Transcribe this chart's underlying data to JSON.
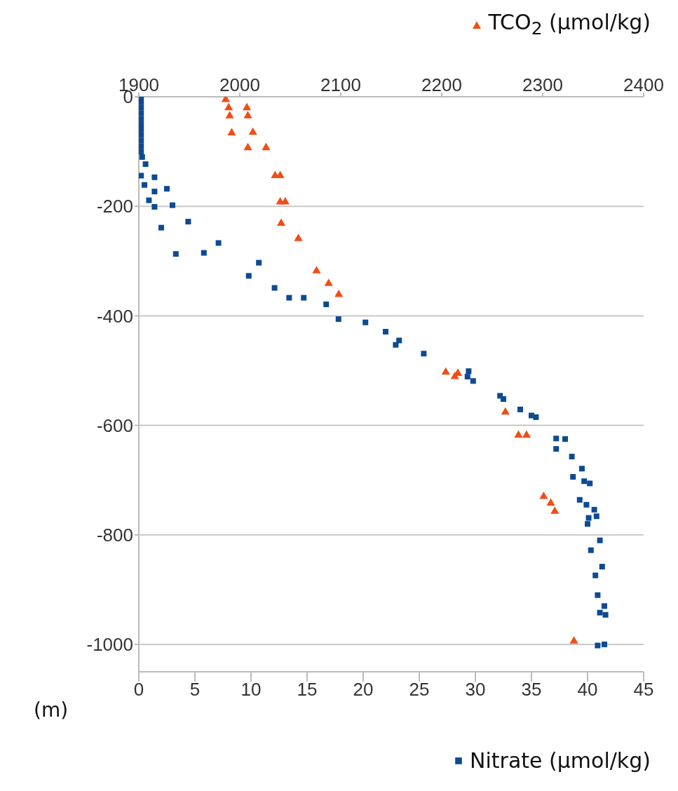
{
  "chart_data": {
    "type": "scatter",
    "ylabel": "(m)",
    "legend": "right",
    "grid": "y",
    "xlim": [
      0,
      45
    ],
    "xticks": [
      0,
      5,
      10,
      15,
      20,
      25,
      30,
      35,
      40,
      45
    ],
    "x2lim": [
      1900,
      2400
    ],
    "x2ticks": [
      1900,
      2000,
      2100,
      2200,
      2300,
      2400
    ],
    "ylim": [
      -1050,
      0
    ],
    "yticks": [
      -1000,
      -800,
      -600,
      -400,
      -200,
      0
    ],
    "series": [
      {
        "name": "TCO$_{2}$ (µmol/kg)",
        "axis": "x2",
        "marker": "triangle",
        "color": "#f04e16",
        "x": [
          1986,
          1989,
          1990,
          2007,
          2008,
          1992,
          2013,
          2008,
          2026,
          2035,
          2040,
          2040,
          2045,
          2041,
          2058,
          2076,
          2088,
          2098,
          2204,
          2213,
          2216,
          2263,
          2276,
          2284,
          2301,
          2308,
          2312,
          2331
        ],
        "values": [
          -5,
          -20,
          -35,
          -20,
          -35,
          -66,
          -65,
          -93,
          -93,
          -144,
          -144,
          -192,
          -192,
          -231,
          -259,
          -318,
          -341,
          -361,
          -503,
          -511,
          -505,
          -576,
          -618,
          -618,
          -730,
          -742,
          -757,
          -994
        ]
      },
      {
        "name": "Nitrate (µmol/kg)",
        "marker": "square",
        "color": "#0d4a94",
        "x": [
          0.2,
          0.2,
          0.2,
          0.2,
          0.2,
          0.2,
          0.2,
          0.2,
          0.2,
          0.2,
          0.2,
          0.3,
          0.6,
          0.2,
          1.4,
          0.5,
          1.4,
          2.5,
          0.9,
          1.4,
          3.0,
          2.0,
          4.4,
          3.3,
          5.8,
          7.1,
          10.7,
          9.8,
          12.1,
          13.4,
          14.7,
          16.7,
          17.8,
          20.2,
          22.0,
          23.2,
          22.9,
          25.4,
          29.4,
          29.8,
          29.3,
          32.2,
          32.5,
          34.0,
          35.0,
          35.4,
          37.2,
          38.0,
          37.2,
          38.6,
          39.5,
          38.7,
          39.7,
          40.2,
          39.3,
          39.9,
          40.6,
          40.8,
          40.1,
          40.0,
          41.1,
          40.3,
          41.3,
          40.7,
          40.9,
          41.5,
          41.1,
          41.6,
          40.9,
          41.5
        ],
        "values": [
          0,
          -10,
          -20,
          -30,
          -40,
          -50,
          -60,
          -70,
          -80,
          -90,
          -100,
          -110,
          -123,
          -144,
          -147,
          -161,
          -173,
          -168,
          -189,
          -201,
          -198,
          -239,
          -228,
          -287,
          -285,
          -267,
          -303,
          -327,
          -349,
          -367,
          -367,
          -379,
          -406,
          -412,
          -429,
          -445,
          -453,
          -469,
          -501,
          -519,
          -511,
          -546,
          -552,
          -571,
          -582,
          -585,
          -624,
          -625,
          -643,
          -657,
          -679,
          -694,
          -702,
          -706,
          -736,
          -745,
          -754,
          -766,
          -769,
          -780,
          -810,
          -828,
          -858,
          -874,
          -910,
          -930,
          -942,
          -946,
          -1002,
          -1000
        ]
      }
    ]
  }
}
